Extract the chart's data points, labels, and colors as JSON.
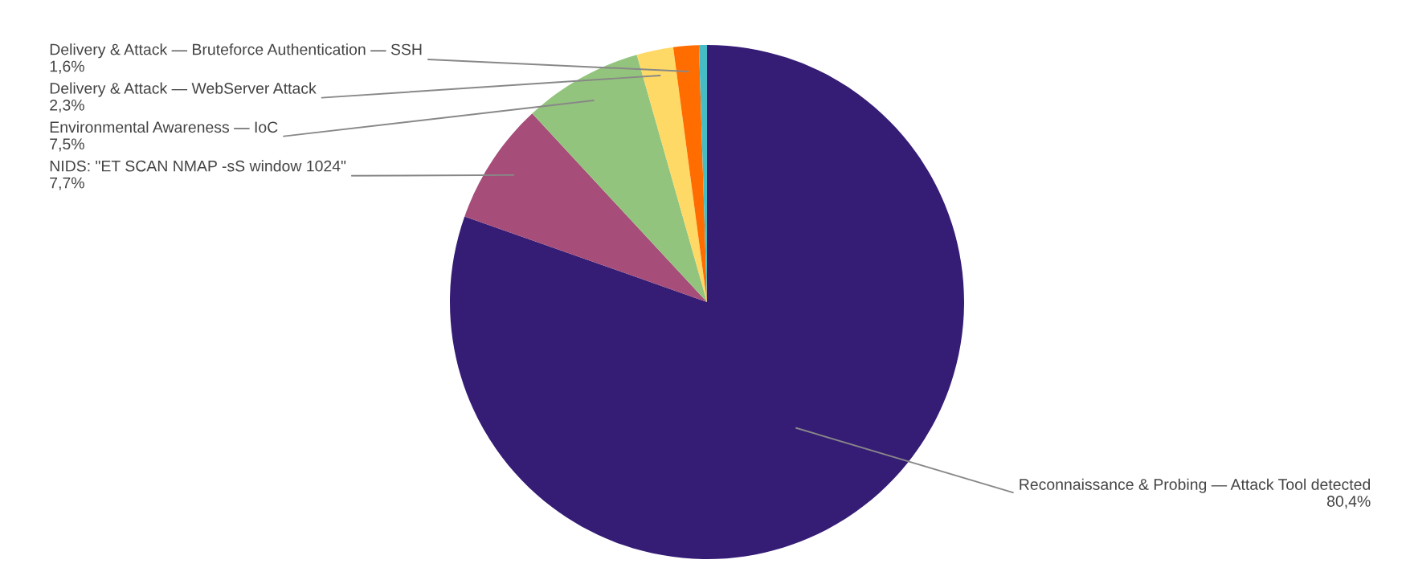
{
  "chart_data": {
    "type": "pie",
    "categories": [
      "Reconnaissance & Probing — Attack Tool detected",
      "NIDS: \"ET SCAN NMAP -sS window 1024\"",
      "Environmental Awareness — IoC",
      "Delivery & Attack — WebServer Attack",
      "Delivery & Attack — Bruteforce Authentication — SSH",
      null
    ],
    "values": [
      80.4,
      7.7,
      7.5,
      2.3,
      1.6,
      0.5
    ],
    "colors": [
      "#351c75",
      "#a64d79",
      "#93c47d",
      "#ffd966",
      "#ff6d01",
      "#46bdc6"
    ],
    "value_labels": [
      "80,4%",
      "7,7%",
      "7,5%",
      "2,3%",
      "1,6%",
      null
    ]
  }
}
